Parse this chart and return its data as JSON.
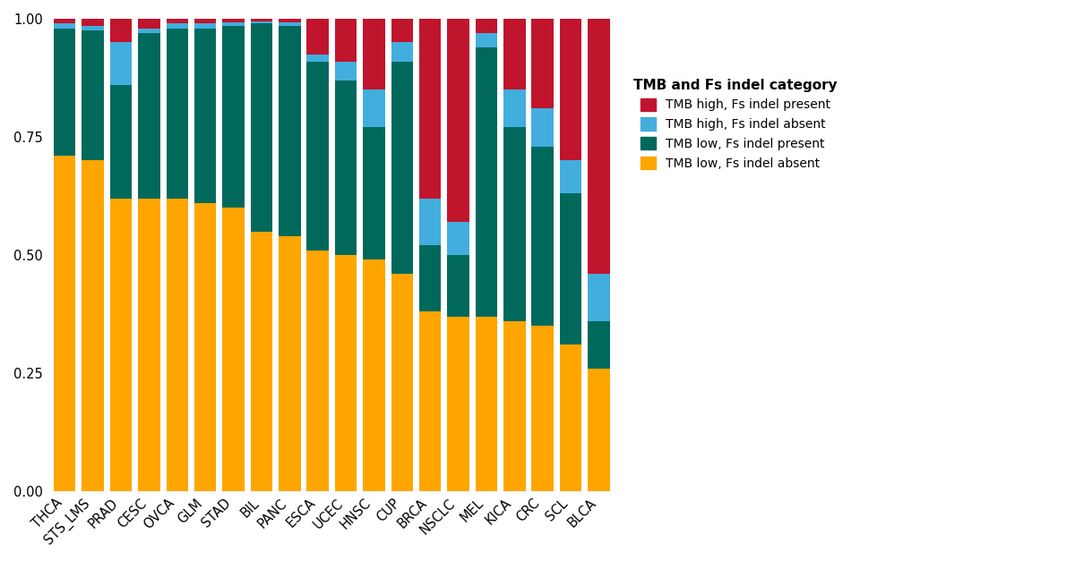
{
  "categories": [
    "THCA",
    "STS_LMS",
    "PRAD",
    "CESC",
    "OVCA",
    "GLM",
    "STAD",
    "BIL",
    "PANC",
    "ESCA",
    "UCEC",
    "HNSC",
    "CUP",
    "BRCA",
    "NSCLC",
    "MEL",
    "KICA",
    "CRC",
    "SCL",
    "BLCA"
  ],
  "tmb_low_fs_absent": [
    0.71,
    0.7,
    0.62,
    0.62,
    0.62,
    0.61,
    0.6,
    0.55,
    0.54,
    0.51,
    0.5,
    0.49,
    0.46,
    0.38,
    0.37,
    0.37,
    0.36,
    0.35,
    0.31,
    0.26
  ],
  "tmb_low_fs_present": [
    0.27,
    0.275,
    0.24,
    0.35,
    0.36,
    0.37,
    0.385,
    0.44,
    0.445,
    0.4,
    0.37,
    0.28,
    0.45,
    0.14,
    0.13,
    0.57,
    0.41,
    0.38,
    0.32,
    0.1
  ],
  "tmb_high_fs_absent": [
    0.01,
    0.01,
    0.09,
    0.01,
    0.01,
    0.01,
    0.008,
    0.005,
    0.008,
    0.015,
    0.04,
    0.08,
    0.04,
    0.1,
    0.07,
    0.03,
    0.08,
    0.08,
    0.07,
    0.1
  ],
  "tmb_high_fs_present": [
    0.01,
    0.015,
    0.05,
    0.02,
    0.01,
    0.01,
    0.007,
    0.005,
    0.007,
    0.075,
    0.09,
    0.15,
    0.05,
    0.38,
    0.43,
    0.03,
    0.15,
    0.19,
    0.3,
    0.54
  ],
  "colors": {
    "tmb_low_fs_absent": "#FFA500",
    "tmb_low_fs_present": "#00695C",
    "tmb_high_fs_absent": "#42AEDE",
    "tmb_high_fs_present": "#C0152D"
  },
  "legend_title": "TMB and Fs indel category",
  "legend_labels": {
    "tmb_high_fs_present": "TMB high, Fs indel present",
    "tmb_high_fs_absent": "TMB high, Fs indel absent",
    "tmb_low_fs_present": "TMB low, Fs indel present",
    "tmb_low_fs_absent": "TMB low, Fs indel absent"
  },
  "yticks": [
    0.0,
    0.25,
    0.5,
    0.75,
    1.0
  ],
  "background_color": "#FFFFFF"
}
